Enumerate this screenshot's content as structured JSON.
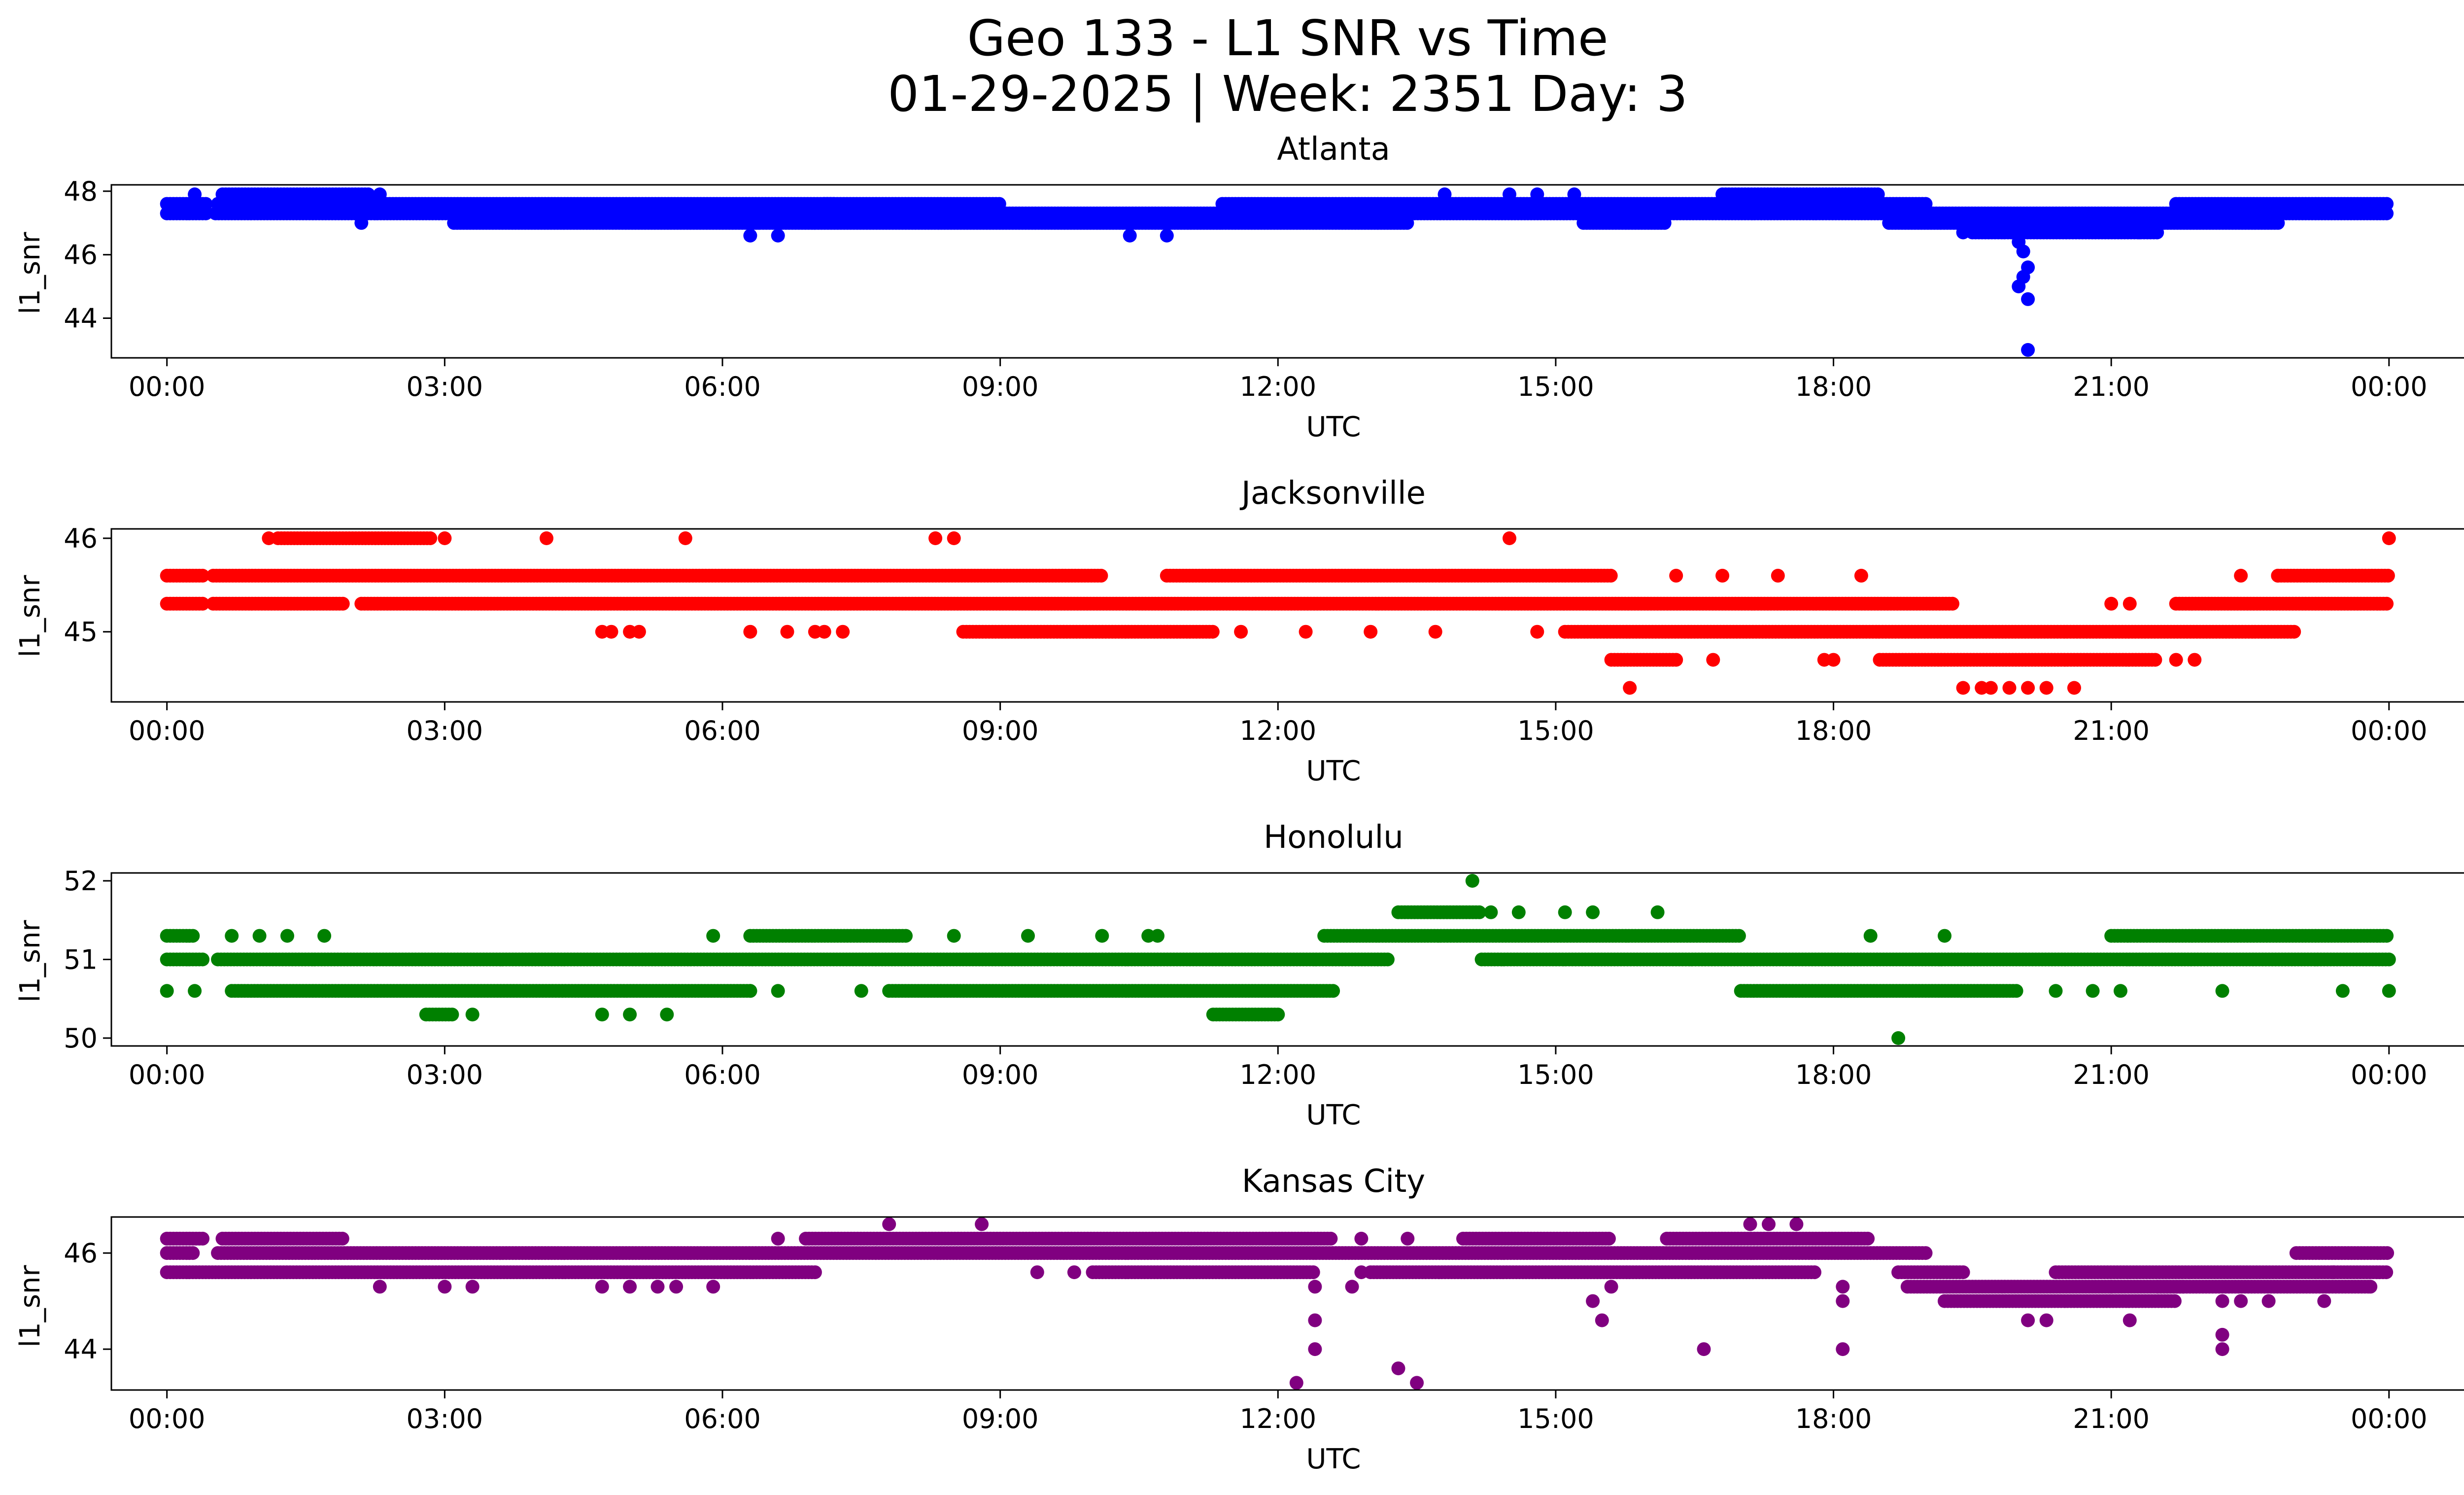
{
  "figure": {
    "title_line1": "Geo 133 - L1 SNR vs Time",
    "title_line2": "01-29-2025 | Week: 2351 Day: 3"
  },
  "chart_data": [
    {
      "type": "scatter",
      "title": "Atlanta",
      "xlabel": "UTC",
      "ylabel": "l1_snr",
      "color": "#0000ff",
      "xlim": [
        -0.6,
        25.8
      ],
      "ylim": [
        42.75,
        48.2
      ],
      "xticks": [
        "00:00",
        "03:00",
        "06:00",
        "09:00",
        "12:00",
        "15:00",
        "18:00",
        "21:00",
        "00:00"
      ],
      "yticks": [
        44,
        46,
        48
      ],
      "bands": [
        {
          "y": 47.3,
          "from": 0.0,
          "to": 24.0,
          "gaps": [
            [
              0.45,
              0.5
            ]
          ]
        },
        {
          "y": 47.6,
          "from": 0.0,
          "to": 0.45
        },
        {
          "y": 47.6,
          "from": 0.55,
          "to": 7.2
        },
        {
          "y": 47.6,
          "from": 7.1,
          "to": 9.0
        },
        {
          "y": 47.6,
          "from": 11.4,
          "to": 19.0
        },
        {
          "y": 47.6,
          "from": 21.7,
          "to": 24.0
        },
        {
          "y": 47.0,
          "from": 3.1,
          "to": 6.4
        },
        {
          "y": 47.0,
          "from": 6.3,
          "to": 11.4
        },
        {
          "y": 47.0,
          "from": 11.4,
          "to": 13.4
        },
        {
          "y": 47.0,
          "from": 15.3,
          "to": 16.2
        },
        {
          "y": 47.0,
          "from": 18.6,
          "to": 22.8
        },
        {
          "y": 46.7,
          "from": 19.5,
          "to": 21.5
        },
        {
          "y": 47.9,
          "from": 0.6,
          "to": 2.2
        },
        {
          "y": 47.9,
          "from": 16.8,
          "to": 18.5
        }
      ],
      "points": [
        [
          0.3,
          47.9
        ],
        [
          2.3,
          47.9
        ],
        [
          14.5,
          47.9
        ],
        [
          15.2,
          47.9
        ],
        [
          14.8,
          47.9
        ],
        [
          13.8,
          47.9
        ],
        [
          6.3,
          46.6
        ],
        [
          6.6,
          46.6
        ],
        [
          10.4,
          46.6
        ],
        [
          10.8,
          46.6
        ],
        [
          2.1,
          47.0
        ],
        [
          20.0,
          46.4
        ],
        [
          20.05,
          46.1
        ],
        [
          20.1,
          45.6
        ],
        [
          20.05,
          45.3
        ],
        [
          20.0,
          45.0
        ],
        [
          20.1,
          44.6
        ],
        [
          20.1,
          43.0
        ],
        [
          19.4,
          46.7
        ],
        [
          21.3,
          46.7
        ]
      ]
    },
    {
      "type": "scatter",
      "title": "Jacksonville",
      "xlabel": "UTC",
      "ylabel": "l1_snr",
      "color": "#ff0000",
      "xlim": [
        -0.6,
        25.8
      ],
      "ylim": [
        44.25,
        46.1
      ],
      "xticks": [
        "00:00",
        "03:00",
        "06:00",
        "09:00",
        "12:00",
        "15:00",
        "18:00",
        "21:00",
        "00:00"
      ],
      "yticks": [
        45,
        46
      ],
      "bands": [
        {
          "y": 45.6,
          "from": 0.0,
          "to": 0.4
        },
        {
          "y": 45.6,
          "from": 0.5,
          "to": 10.1
        },
        {
          "y": 45.6,
          "from": 10.8,
          "to": 15.6
        },
        {
          "y": 45.6,
          "from": 22.8,
          "to": 24.0
        },
        {
          "y": 45.3,
          "from": 0.0,
          "to": 0.4
        },
        {
          "y": 45.3,
          "from": 0.5,
          "to": 1.9
        },
        {
          "y": 45.3,
          "from": 2.1,
          "to": 19.3
        },
        {
          "y": 45.3,
          "from": 21.7,
          "to": 24.0
        },
        {
          "y": 45.0,
          "from": 8.6,
          "to": 11.3
        },
        {
          "y": 45.0,
          "from": 15.1,
          "to": 23.0
        },
        {
          "y": 44.7,
          "from": 15.6,
          "to": 16.3
        },
        {
          "y": 44.7,
          "from": 18.5,
          "to": 21.5
        },
        {
          "y": 46.0,
          "from": 1.2,
          "to": 2.85
        }
      ],
      "points": [
        [
          1.1,
          46.0
        ],
        [
          3.0,
          46.0
        ],
        [
          4.1,
          46.0
        ],
        [
          5.6,
          46.0
        ],
        [
          8.3,
          46.0
        ],
        [
          8.5,
          46.0
        ],
        [
          14.5,
          46.0
        ],
        [
          24.0,
          46.0
        ],
        [
          4.7,
          45.0
        ],
        [
          4.8,
          45.0
        ],
        [
          5.0,
          45.0
        ],
        [
          5.1,
          45.0
        ],
        [
          6.3,
          45.0
        ],
        [
          6.7,
          45.0
        ],
        [
          7.0,
          45.0
        ],
        [
          7.1,
          45.0
        ],
        [
          7.3,
          45.0
        ],
        [
          11.6,
          45.0
        ],
        [
          12.3,
          45.0
        ],
        [
          13.0,
          45.0
        ],
        [
          13.7,
          45.0
        ],
        [
          14.8,
          45.0
        ],
        [
          16.7,
          44.7
        ],
        [
          17.9,
          44.7
        ],
        [
          18.0,
          44.7
        ],
        [
          21.7,
          44.7
        ],
        [
          21.9,
          44.7
        ],
        [
          15.8,
          44.4
        ],
        [
          19.4,
          44.4
        ],
        [
          19.6,
          44.4
        ],
        [
          19.7,
          44.4
        ],
        [
          19.9,
          44.4
        ],
        [
          20.1,
          44.4
        ],
        [
          20.3,
          44.4
        ],
        [
          20.6,
          44.4
        ],
        [
          16.3,
          45.6
        ],
        [
          16.8,
          45.6
        ],
        [
          17.4,
          45.6
        ],
        [
          18.3,
          45.6
        ],
        [
          22.4,
          45.6
        ],
        [
          22.8,
          45.6
        ],
        [
          21.2,
          45.3
        ],
        [
          21.0,
          45.3
        ]
      ]
    },
    {
      "type": "scatter",
      "title": "Honolulu",
      "xlabel": "UTC",
      "ylabel": "l1_snr",
      "color": "#008000",
      "xlim": [
        -0.6,
        25.8
      ],
      "ylim": [
        49.9,
        52.1
      ],
      "xticks": [
        "00:00",
        "03:00",
        "06:00",
        "09:00",
        "12:00",
        "15:00",
        "18:00",
        "21:00",
        "00:00"
      ],
      "yticks": [
        50,
        51,
        52
      ],
      "bands": [
        {
          "y": 51.0,
          "from": 0.0,
          "to": 0.4
        },
        {
          "y": 51.0,
          "from": 0.55,
          "to": 13.2
        },
        {
          "y": 51.0,
          "from": 14.2,
          "to": 24.0
        },
        {
          "y": 51.3,
          "from": 0.0,
          "to": 0.3
        },
        {
          "y": 51.3,
          "from": 6.3,
          "to": 8.0
        },
        {
          "y": 51.3,
          "from": 12.5,
          "to": 17.0
        },
        {
          "y": 51.3,
          "from": 21.0,
          "to": 24.0
        },
        {
          "y": 50.6,
          "from": 0.7,
          "to": 6.3
        },
        {
          "y": 50.6,
          "from": 7.8,
          "to": 12.6
        },
        {
          "y": 50.6,
          "from": 17.0,
          "to": 20.0
        },
        {
          "y": 51.6,
          "from": 13.3,
          "to": 14.2
        },
        {
          "y": 50.3,
          "from": 2.8,
          "to": 3.1
        },
        {
          "y": 50.3,
          "from": 11.3,
          "to": 12.0
        }
      ],
      "points": [
        [
          0.0,
          50.6
        ],
        [
          0.3,
          50.6
        ],
        [
          6.3,
          50.6
        ],
        [
          6.6,
          50.6
        ],
        [
          7.5,
          50.6
        ],
        [
          20.4,
          50.6
        ],
        [
          20.8,
          50.6
        ],
        [
          21.1,
          50.6
        ],
        [
          22.2,
          50.6
        ],
        [
          23.5,
          50.6
        ],
        [
          24.0,
          50.6
        ],
        [
          3.3,
          50.3
        ],
        [
          4.7,
          50.3
        ],
        [
          5.0,
          50.3
        ],
        [
          5.4,
          50.3
        ],
        [
          14.3,
          51.6
        ],
        [
          14.6,
          51.6
        ],
        [
          15.1,
          51.6
        ],
        [
          15.4,
          51.6
        ],
        [
          16.1,
          51.6
        ],
        [
          14.1,
          52.0
        ],
        [
          18.7,
          50.0
        ],
        [
          1.3,
          51.3
        ],
        [
          1.7,
          51.3
        ],
        [
          5.9,
          51.3
        ],
        [
          8.5,
          51.3
        ],
        [
          9.3,
          51.3
        ],
        [
          10.1,
          51.3
        ],
        [
          10.6,
          51.3
        ],
        [
          10.7,
          51.3
        ],
        [
          18.4,
          51.3
        ],
        [
          19.2,
          51.3
        ],
        [
          0.7,
          51.3
        ],
        [
          1.0,
          51.3
        ]
      ]
    },
    {
      "type": "scatter",
      "title": "Kansas City",
      "xlabel": "UTC",
      "ylabel": "l1_snr",
      "color": "#800080",
      "xlim": [
        -0.6,
        25.8
      ],
      "ylim": [
        43.15,
        46.75
      ],
      "xticks": [
        "00:00",
        "03:00",
        "06:00",
        "09:00",
        "12:00",
        "15:00",
        "18:00",
        "21:00",
        "00:00"
      ],
      "yticks": [
        44,
        46
      ],
      "bands": [
        {
          "y": 46.0,
          "from": 0.0,
          "to": 0.3
        },
        {
          "y": 46.0,
          "from": 0.55,
          "to": 19.0
        },
        {
          "y": 46.0,
          "from": 23.0,
          "to": 24.0
        },
        {
          "y": 46.3,
          "from": 0.0,
          "to": 0.4
        },
        {
          "y": 46.3,
          "from": 0.6,
          "to": 1.9
        },
        {
          "y": 46.3,
          "from": 6.9,
          "to": 12.6
        },
        {
          "y": 46.3,
          "from": 14.0,
          "to": 15.6
        },
        {
          "y": 46.3,
          "from": 16.2,
          "to": 18.4
        },
        {
          "y": 45.6,
          "from": 0.0,
          "to": 7.0
        },
        {
          "y": 45.6,
          "from": 10.0,
          "to": 12.4
        },
        {
          "y": 45.6,
          "from": 13.0,
          "to": 17.8
        },
        {
          "y": 45.6,
          "from": 18.7,
          "to": 19.4
        },
        {
          "y": 45.6,
          "from": 20.4,
          "to": 24.0
        },
        {
          "y": 45.3,
          "from": 18.8,
          "to": 21.8
        },
        {
          "y": 45.3,
          "from": 21.5,
          "to": 23.8
        },
        {
          "y": 45.0,
          "from": 19.2,
          "to": 21.7
        }
      ],
      "points": [
        [
          2.3,
          45.3
        ],
        [
          3.0,
          45.3
        ],
        [
          3.3,
          45.3
        ],
        [
          4.7,
          45.3
        ],
        [
          5.0,
          45.3
        ],
        [
          5.3,
          45.3
        ],
        [
          5.5,
          45.3
        ],
        [
          5.9,
          45.3
        ],
        [
          7.8,
          46.6
        ],
        [
          8.8,
          46.6
        ],
        [
          17.1,
          46.6
        ],
        [
          17.3,
          46.6
        ],
        [
          17.6,
          46.6
        ],
        [
          6.6,
          46.3
        ],
        [
          12.9,
          46.3
        ],
        [
          13.4,
          46.3
        ],
        [
          9.4,
          45.6
        ],
        [
          9.8,
          45.6
        ],
        [
          12.9,
          45.6
        ],
        [
          12.2,
          43.3
        ],
        [
          12.4,
          44.0
        ],
        [
          12.4,
          44.6
        ],
        [
          12.4,
          45.3
        ],
        [
          12.8,
          45.3
        ],
        [
          13.3,
          43.6
        ],
        [
          13.5,
          43.3
        ],
        [
          15.4,
          45.0
        ],
        [
          15.5,
          44.6
        ],
        [
          15.6,
          45.3
        ],
        [
          16.6,
          44.0
        ],
        [
          18.1,
          44.0
        ],
        [
          18.1,
          45.0
        ],
        [
          18.1,
          45.3
        ],
        [
          20.1,
          44.6
        ],
        [
          20.3,
          44.6
        ],
        [
          21.2,
          44.6
        ],
        [
          22.2,
          44.0
        ],
        [
          22.2,
          44.3
        ],
        [
          22.2,
          45.0
        ],
        [
          22.4,
          45.0
        ],
        [
          22.7,
          45.0
        ],
        [
          23.3,
          45.0
        ],
        [
          23.4,
          45.6
        ],
        [
          23.8,
          45.3
        ],
        [
          21.0,
          45.3
        ]
      ]
    }
  ]
}
